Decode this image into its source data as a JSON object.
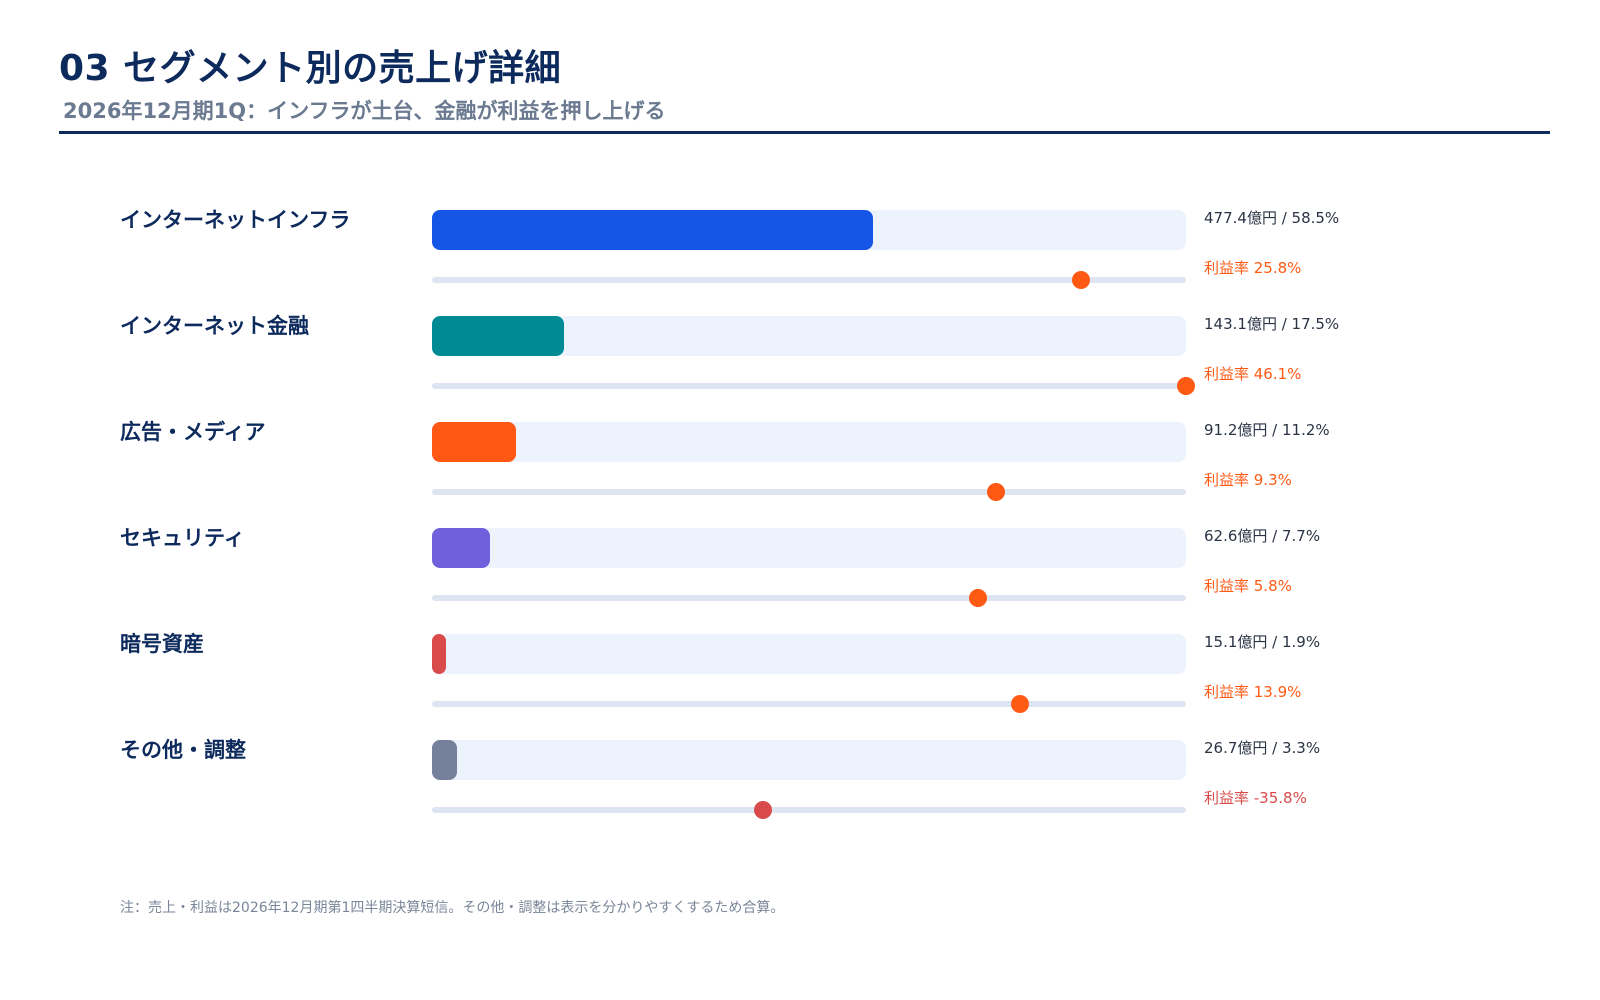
{
  "header": {
    "title": "03 セグメント別の売上げ詳細",
    "subtitle": "2026年12月期1Q：インフラが土台、金融が利益を押し上げる"
  },
  "chart_data": {
    "type": "bar",
    "orientation": "horizontal",
    "categories": [
      "インターネットインフラ",
      "インターネット金融",
      "広告・メディア",
      "セキュリティ",
      "暗号資産",
      "その他・調整"
    ],
    "series": [
      {
        "name": "",
        "values": [
          477.4,
          143.1,
          91.2,
          62.6,
          15.1,
          26.7
        ]
      }
    ],
    "share_pct": [
      58.5,
      17.5,
      11.2,
      7.7,
      1.9,
      3.3
    ],
    "margin_pct": [
      25.8,
      46.1,
      9.3,
      5.8,
      13.9,
      -35.8
    ],
    "margin_axis_range": [
      -100,
      46.1
    ],
    "bar_colors": [
      "#1556e6",
      "#008b94",
      "#ff5714",
      "#7160dc",
      "#d94b4b",
      "#75819a"
    ],
    "margin_colors": [
      "#ff5a14",
      "#ff5a14",
      "#ff5a14",
      "#ff5a14",
      "#ff5a14",
      "#d94b4b"
    ],
    "value_labels": [
      "477.4億円 / 58.5%",
      "143.1億円 / 17.5%",
      "91.2億円 / 11.2%",
      "62.6億円 / 7.7%",
      "15.1億円 / 1.9%",
      "26.7億円 / 3.3%"
    ],
    "margin_labels": [
      "利益率 25.8%",
      "利益率 46.1%",
      "利益率 9.3%",
      "利益率 5.8%",
      "利益率 13.9%",
      "利益率 -35.8%"
    ],
    "legend": "none",
    "grid": false
  },
  "footer": {
    "note": "注：売上・利益は2026年12月期第1四半期決算短信。その他・調整は表示を分かりやすくするため合算。"
  }
}
